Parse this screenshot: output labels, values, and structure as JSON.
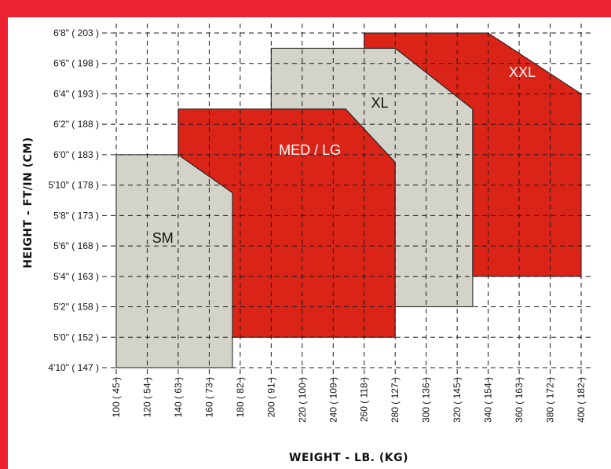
{
  "chart_data": {
    "type": "area",
    "xlabel": "WEIGHT - LB. (KG)",
    "ylabel": "HEIGHT - FT/IN (CM)",
    "x_ticks": [
      {
        "value": 100,
        "label": "100 ( 45 )"
      },
      {
        "value": 120,
        "label": "120 ( 54 )"
      },
      {
        "value": 140,
        "label": "140 ( 63 )"
      },
      {
        "value": 160,
        "label": "160 ( 73 )"
      },
      {
        "value": 180,
        "label": "180 ( 82 )"
      },
      {
        "value": 200,
        "label": "200 ( 91 )"
      },
      {
        "value": 220,
        "label": "220 ( 100 )"
      },
      {
        "value": 240,
        "label": "240 ( 109 )"
      },
      {
        "value": 260,
        "label": "260 ( 118 )"
      },
      {
        "value": 280,
        "label": "280 ( 127 )"
      },
      {
        "value": 300,
        "label": "300 ( 136 )"
      },
      {
        "value": 320,
        "label": "320 ( 145 )"
      },
      {
        "value": 340,
        "label": "340 ( 154 )"
      },
      {
        "value": 360,
        "label": "360 ( 163 )"
      },
      {
        "value": 380,
        "label": "380 ( 172 )"
      },
      {
        "value": 400,
        "label": "400 ( 182 )"
      }
    ],
    "y_ticks": [
      {
        "value": 58,
        "label": "4'10\" ( 147 )"
      },
      {
        "value": 60,
        "label": "5'0\" ( 152 )"
      },
      {
        "value": 62,
        "label": "5'2\" ( 158 )"
      },
      {
        "value": 64,
        "label": "5'4\" ( 163 )"
      },
      {
        "value": 66,
        "label": "5'6\" ( 168 )"
      },
      {
        "value": 68,
        "label": "5'8\" ( 173 )"
      },
      {
        "value": 70,
        "label": "5'10\" ( 178 )"
      },
      {
        "value": 72,
        "label": "6'0\" ( 183 )"
      },
      {
        "value": 74,
        "label": "6'2\" ( 188 )"
      },
      {
        "value": 76,
        "label": "6'4\" ( 193 )"
      },
      {
        "value": 78,
        "label": "6'6\" ( 198 )"
      },
      {
        "value": 80,
        "label": "6'8\" ( 203 )"
      }
    ],
    "xlim": [
      100,
      400
    ],
    "ylim": [
      58,
      80
    ],
    "grid": true,
    "series": [
      {
        "name": "SM",
        "color": "#d3d3c9",
        "polygon": [
          [
            100,
            58
          ],
          [
            100,
            72
          ],
          [
            140,
            72
          ],
          [
            175,
            69.5
          ],
          [
            175,
            58
          ]
        ],
        "label_at": [
          130,
          66.2
        ]
      },
      {
        "name": "MED / LG",
        "color": "#db2418",
        "polygon": [
          [
            140,
            72
          ],
          [
            140,
            75
          ],
          [
            248,
            75
          ],
          [
            280,
            71.5
          ],
          [
            280,
            60
          ],
          [
            175,
            60
          ],
          [
            175,
            69.5
          ]
        ],
        "label_at": [
          225,
          72
        ]
      },
      {
        "name": "XL",
        "color": "#d3d3c9",
        "polygon": [
          [
            200,
            75
          ],
          [
            200,
            79
          ],
          [
            280,
            79
          ],
          [
            330,
            75
          ],
          [
            330,
            62
          ],
          [
            280,
            62
          ],
          [
            280,
            71.5
          ],
          [
            248,
            75
          ]
        ],
        "label_at": [
          270,
          75.1
        ]
      },
      {
        "name": "XXL",
        "color": "#db2418",
        "polygon": [
          [
            260,
            79
          ],
          [
            260,
            80
          ],
          [
            340,
            80
          ],
          [
            400,
            76
          ],
          [
            400,
            64
          ],
          [
            330,
            64
          ],
          [
            330,
            75
          ],
          [
            280,
            79
          ]
        ],
        "label_at": [
          362,
          77.1
        ]
      }
    ]
  }
}
